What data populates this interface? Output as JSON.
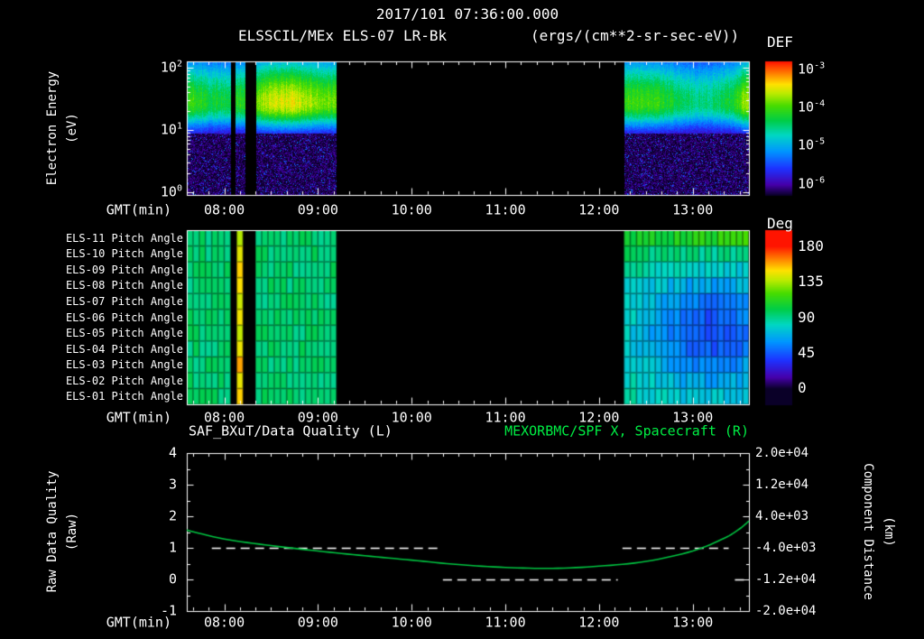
{
  "header": {
    "title": "2017/101 07:36:00.000",
    "instrument": "ELSSCIL/MEx ELS-07 LR-Bk",
    "units": "(ergs/(cm**2-sr-sec-eV))"
  },
  "time_axis": {
    "label": "GMT(min)",
    "start": "07:36",
    "end": "13:36",
    "ticks": [
      "08:00",
      "09:00",
      "10:00",
      "11:00",
      "12:00",
      "13:00"
    ]
  },
  "spectrogram": {
    "ylabel": "Electron Energy",
    "yunits": "(eV)",
    "y_ticks": [
      {
        "base": "10",
        "exp": "2"
      },
      {
        "base": "10",
        "exp": "1"
      },
      {
        "base": "10",
        "exp": "0"
      }
    ],
    "colorbar": {
      "title": "DEF",
      "ticks": [
        {
          "base": "10",
          "exp": "-3"
        },
        {
          "base": "10",
          "exp": "-4"
        },
        {
          "base": "10",
          "exp": "-5"
        },
        {
          "base": "10",
          "exp": "-6"
        }
      ]
    }
  },
  "pitch_panel": {
    "rows": [
      "ELS-11 Pitch Angle",
      "ELS-10 Pitch Angle",
      "ELS-09 Pitch Angle",
      "ELS-08 Pitch Angle",
      "ELS-07 Pitch Angle",
      "ELS-06 Pitch Angle",
      "ELS-05 Pitch Angle",
      "ELS-04 Pitch Angle",
      "ELS-03 Pitch Angle",
      "ELS-02 Pitch Angle",
      "ELS-01 Pitch Angle"
    ],
    "colorbar": {
      "title": "Deg",
      "ticks": [
        "180",
        "135",
        "90",
        "45",
        "0"
      ]
    }
  },
  "bottom_panel": {
    "left_title": "SAF_BXuT/Data Quality (L)",
    "right_title": "MEXORBMC/SPF X, Spacecraft (R)",
    "left_ylabel": "Raw Data Quality",
    "left_yunits": "(Raw)",
    "right_ylabel": "Component Distance",
    "right_yunits": "(km)",
    "left_ticks": [
      "4",
      "3",
      "2",
      "1",
      "0",
      "-1"
    ],
    "right_ticks": [
      "2.0e+04",
      "1.2e+04",
      "4.0e+03",
      "-4.0e+03",
      "-1.2e+04",
      "-2.0e+04"
    ],
    "title_color_right": "#00ee44"
  },
  "chart_data": [
    {
      "type": "heatmap",
      "name": "electron-energy-spectrogram",
      "title": "ELSSCIL/MEx ELS-07 LR-Bk",
      "units": "ergs/(cm**2-sr-sec-eV)",
      "xlabel": "GMT(min)",
      "ylabel": "Electron Energy (eV)",
      "x_range": [
        "07:36",
        "13:36"
      ],
      "x_ticks": [
        "08:00",
        "09:00",
        "10:00",
        "11:00",
        "12:00",
        "13:00"
      ],
      "y_scale": "log",
      "y_range_ev": [
        1,
        126
      ],
      "z_scale": "log",
      "z_range": [
        3.2e-07,
        0.0016
      ],
      "colorbar_tick_values": [
        0.001,
        0.0001,
        1e-05,
        1e-06
      ],
      "segments": [
        {
          "start": "07:36",
          "end": "09:12",
          "peak_band_ev": [
            12,
            70
          ],
          "peak_flux": 0.0003,
          "low_energy_flux": 8e-07,
          "gaps": [
            [
              "08:04",
              "08:07"
            ],
            [
              "08:13",
              "08:20"
            ]
          ]
        },
        {
          "start": "12:16",
          "end": "13:36",
          "peak_band_ev": [
            12,
            70
          ],
          "peak_flux": 0.00015,
          "low_energy_flux": 8e-07,
          "gaps": []
        }
      ],
      "no_data_intervals": [
        [
          "09:12",
          "12:16"
        ]
      ]
    },
    {
      "type": "heatmap",
      "name": "pitch-angle-panels",
      "rows": [
        "ELS-11",
        "ELS-10",
        "ELS-09",
        "ELS-08",
        "ELS-07",
        "ELS-06",
        "ELS-05",
        "ELS-04",
        "ELS-03",
        "ELS-02",
        "ELS-01"
      ],
      "z_units": "Deg",
      "z_range": [
        0,
        180
      ],
      "segments": [
        {
          "start": "07:36",
          "end": "09:12",
          "typical_deg": 94,
          "stripes": [
            [
              "08:07",
              "08:13"
            ]
          ],
          "stripe_deg": 140,
          "gaps": [
            [
              "08:04",
              "08:07"
            ],
            [
              "08:13",
              "08:20"
            ]
          ]
        },
        {
          "start": "12:16",
          "end": "13:36",
          "typical_deg": 87,
          "min_deg": 45,
          "min_region": {
            "rows": [
              "ELS-08",
              "ELS-03"
            ],
            "time": [
              "12:45",
              "13:30"
            ]
          },
          "top_row_deg": 112,
          "gaps": []
        }
      ]
    },
    {
      "type": "line",
      "name": "data-quality-and-spacecraft-x",
      "xlabel": "GMT(min)",
      "left_axis": {
        "label": "Raw Data Quality (Raw)",
        "range": [
          -1,
          4
        ]
      },
      "right_axis": {
        "label": "Component Distance (km)",
        "range": [
          -20000,
          20000
        ]
      },
      "series": [
        {
          "name": "SAF_BXuT/Data Quality (L)",
          "axis": "left",
          "style": "dashed",
          "color": "#ffffff",
          "segments": [
            {
              "value": 1,
              "start": "07:52",
              "end": "10:18"
            },
            {
              "value": 0,
              "start": "10:20",
              "end": "12:12"
            },
            {
              "value": 1,
              "start": "12:15",
              "end": "13:23"
            },
            {
              "value": 0,
              "start": "13:27",
              "end": "13:34"
            }
          ]
        },
        {
          "name": "MEXORBMC/SPF X, Spacecraft (R)",
          "axis": "right",
          "style": "solid",
          "color": "#00c341",
          "points": {
            "t": [
              "07:36",
              "08:00",
              "08:30",
              "09:00",
              "09:30",
              "10:00",
              "10:30",
              "11:00",
              "11:30",
              "12:00",
              "12:30",
              "13:00",
              "13:20",
              "13:30",
              "13:36"
            ],
            "km": [
              480,
              -1760,
              -3440,
              -4800,
              -6000,
              -7120,
              -8240,
              -8960,
              -9200,
              -8640,
              -7440,
              -4800,
              -1600,
              800,
              2800
            ]
          }
        }
      ]
    }
  ]
}
